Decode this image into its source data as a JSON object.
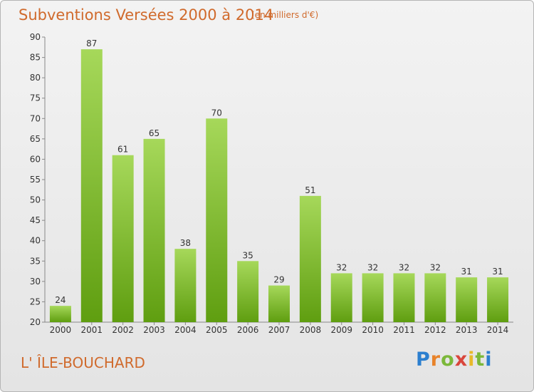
{
  "header": {
    "title": "Subventions Versées 2000 à 2014",
    "unit": "(en milliers d'€)"
  },
  "footer": {
    "commune": "L' ÎLE-BOUCHARD",
    "logo_text": "Proxiti"
  },
  "colors": {
    "bar_top": "#a6d85a",
    "bar_bottom": "#5f9e10",
    "title": "#d06a2c"
  },
  "chart_data": {
    "type": "bar",
    "title": "Subventions Versées 2000 à 2014",
    "subtitle": "(en milliers d'€)",
    "categories": [
      "2000",
      "2001",
      "2002",
      "2003",
      "2004",
      "2005",
      "2006",
      "2007",
      "2008",
      "2009",
      "2010",
      "2011",
      "2012",
      "2013",
      "2014"
    ],
    "values": [
      24,
      87,
      61,
      65,
      38,
      70,
      35,
      29,
      51,
      32,
      32,
      32,
      32,
      31,
      31
    ],
    "ylim": [
      20,
      90
    ],
    "yticks": [
      20,
      25,
      30,
      35,
      40,
      45,
      50,
      55,
      60,
      65,
      70,
      75,
      80,
      85,
      90
    ],
    "grid": false,
    "data_labels": true
  }
}
